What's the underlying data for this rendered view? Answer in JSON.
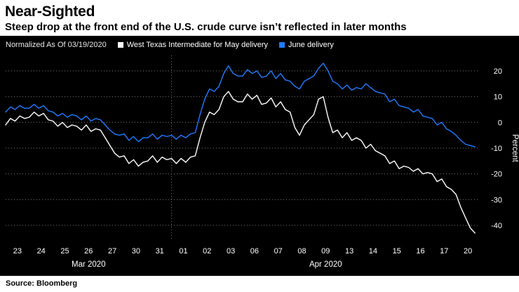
{
  "header": {
    "title": "Near-Sighted",
    "subtitle": "Steep drop at the front end of the U.S. crude curve isn’t reflected in later months"
  },
  "legend": {
    "note": "Normalized As Of 03/19/2020",
    "series": [
      {
        "label": "West Texas Intermediate for May delivery",
        "color": "#ffffff"
      },
      {
        "label": "June delivery",
        "color": "#1f7bff"
      }
    ]
  },
  "footer": {
    "source": "Source: Bloomberg"
  },
  "colors": {
    "background": "#000000",
    "grid": "#7a7a7a",
    "axis_text": "#ffffff",
    "may_series": "#ffffff",
    "june_series": "#1f7bff"
  },
  "chart_data": {
    "type": "line",
    "title": "Near-Sighted",
    "ylabel": "Percent",
    "ylim": [
      -46,
      26
    ],
    "yticks": [
      20,
      10,
      0,
      -10,
      -20,
      -30,
      -40
    ],
    "grid": true,
    "legend_position": "top",
    "x_domain": [
      0,
      20
    ],
    "x_tick_labels": [
      "23",
      "24",
      "25",
      "26",
      "27",
      "30",
      "31",
      "01",
      "02",
      "03",
      "06",
      "07",
      "08",
      "09",
      "13",
      "14",
      "15",
      "16",
      "17",
      "20"
    ],
    "month_labels": [
      {
        "label": "Mar 2020",
        "start_day": 0,
        "end_day": 7
      },
      {
        "label": "Apr 2020",
        "start_day": 7,
        "end_day": 20
      }
    ],
    "month_separator_day": 7,
    "series": [
      {
        "name": "West Texas Intermediate for May delivery",
        "color": "#ffffff",
        "points": [
          [
            0.0,
            -1
          ],
          [
            0.2,
            1.5
          ],
          [
            0.4,
            0.5
          ],
          [
            0.6,
            2.5
          ],
          [
            0.8,
            1.5
          ],
          [
            1.0,
            2
          ],
          [
            1.2,
            4
          ],
          [
            1.4,
            2.5
          ],
          [
            1.6,
            3.5
          ],
          [
            1.8,
            1
          ],
          [
            2.0,
            0.5
          ],
          [
            2.2,
            -1.5
          ],
          [
            2.4,
            0
          ],
          [
            2.6,
            -2
          ],
          [
            2.8,
            -1
          ],
          [
            3.0,
            -1.5
          ],
          [
            3.2,
            -3
          ],
          [
            3.4,
            -1
          ],
          [
            3.6,
            -3.5
          ],
          [
            3.8,
            -2.5
          ],
          [
            4.0,
            -3
          ],
          [
            4.2,
            -6
          ],
          [
            4.4,
            -9
          ],
          [
            4.6,
            -12
          ],
          [
            4.8,
            -13.5
          ],
          [
            5.0,
            -13
          ],
          [
            5.2,
            -16
          ],
          [
            5.4,
            -14.5
          ],
          [
            5.6,
            -17
          ],
          [
            5.8,
            -15.5
          ],
          [
            6.0,
            -15
          ],
          [
            6.2,
            -13
          ],
          [
            6.4,
            -15.5
          ],
          [
            6.6,
            -13.5
          ],
          [
            6.8,
            -14.5
          ],
          [
            7.0,
            -14
          ],
          [
            7.2,
            -16
          ],
          [
            7.4,
            -14
          ],
          [
            7.6,
            -15.5
          ],
          [
            7.8,
            -13.5
          ],
          [
            8.0,
            -13
          ],
          [
            8.2,
            -6
          ],
          [
            8.4,
            0
          ],
          [
            8.6,
            4
          ],
          [
            8.8,
            3
          ],
          [
            9.0,
            5
          ],
          [
            9.2,
            10
          ],
          [
            9.4,
            12
          ],
          [
            9.6,
            9
          ],
          [
            9.8,
            8
          ],
          [
            10.0,
            8
          ],
          [
            10.2,
            11
          ],
          [
            10.4,
            9
          ],
          [
            10.6,
            10.5
          ],
          [
            10.8,
            7
          ],
          [
            11.0,
            7.5
          ],
          [
            11.2,
            9.5
          ],
          [
            11.4,
            6
          ],
          [
            11.6,
            8
          ],
          [
            11.8,
            5
          ],
          [
            12.0,
            4
          ],
          [
            12.2,
            -2
          ],
          [
            12.4,
            -5
          ],
          [
            12.6,
            -1
          ],
          [
            12.8,
            1
          ],
          [
            13.0,
            3
          ],
          [
            13.2,
            9
          ],
          [
            13.4,
            10
          ],
          [
            13.6,
            2
          ],
          [
            13.8,
            -4
          ],
          [
            14.0,
            -3
          ],
          [
            14.2,
            -6
          ],
          [
            14.4,
            -4
          ],
          [
            14.6,
            -7
          ],
          [
            14.8,
            -6
          ],
          [
            15.0,
            -7
          ],
          [
            15.2,
            -10
          ],
          [
            15.4,
            -8.5
          ],
          [
            15.6,
            -11
          ],
          [
            15.8,
            -12
          ],
          [
            16.0,
            -13
          ],
          [
            16.2,
            -16
          ],
          [
            16.4,
            -15
          ],
          [
            16.6,
            -18
          ],
          [
            16.8,
            -17
          ],
          [
            17.0,
            -17.5
          ],
          [
            17.2,
            -19
          ],
          [
            17.4,
            -18
          ],
          [
            17.6,
            -20
          ],
          [
            17.8,
            -19.5
          ],
          [
            18.0,
            -20
          ],
          [
            18.2,
            -23
          ],
          [
            18.4,
            -22
          ],
          [
            18.6,
            -25
          ],
          [
            18.8,
            -26
          ],
          [
            19.0,
            -28
          ],
          [
            19.2,
            -33
          ],
          [
            19.4,
            -37
          ],
          [
            19.6,
            -41
          ],
          [
            19.8,
            -43
          ]
        ]
      },
      {
        "name": "June delivery",
        "color": "#1f7bff",
        "points": [
          [
            0.0,
            4
          ],
          [
            0.2,
            6
          ],
          [
            0.4,
            5
          ],
          [
            0.6,
            6.5
          ],
          [
            0.8,
            5.5
          ],
          [
            1.0,
            5.5
          ],
          [
            1.2,
            7
          ],
          [
            1.4,
            5.5
          ],
          [
            1.6,
            6.5
          ],
          [
            1.8,
            4.5
          ],
          [
            2.0,
            4
          ],
          [
            2.2,
            2.5
          ],
          [
            2.4,
            3.5
          ],
          [
            2.6,
            2
          ],
          [
            2.8,
            3
          ],
          [
            3.0,
            2.5
          ],
          [
            3.2,
            1
          ],
          [
            3.4,
            2.5
          ],
          [
            3.6,
            0.5
          ],
          [
            3.8,
            1.5
          ],
          [
            4.0,
            1
          ],
          [
            4.2,
            -1
          ],
          [
            4.4,
            -3
          ],
          [
            4.6,
            -4.5
          ],
          [
            4.8,
            -5
          ],
          [
            5.0,
            -4.5
          ],
          [
            5.2,
            -7
          ],
          [
            5.4,
            -5.5
          ],
          [
            5.6,
            -7.5
          ],
          [
            5.8,
            -6
          ],
          [
            6.0,
            -6
          ],
          [
            6.2,
            -4.5
          ],
          [
            6.4,
            -6.5
          ],
          [
            6.6,
            -5
          ],
          [
            6.8,
            -5.5
          ],
          [
            7.0,
            -5
          ],
          [
            7.2,
            -6.5
          ],
          [
            7.4,
            -5
          ],
          [
            7.6,
            -6
          ],
          [
            7.8,
            -4.5
          ],
          [
            8.0,
            -4
          ],
          [
            8.2,
            3
          ],
          [
            8.4,
            9
          ],
          [
            8.6,
            13
          ],
          [
            8.8,
            12
          ],
          [
            9.0,
            14
          ],
          [
            9.2,
            19
          ],
          [
            9.4,
            22
          ],
          [
            9.6,
            19
          ],
          [
            9.8,
            18
          ],
          [
            10.0,
            18
          ],
          [
            10.2,
            20.5
          ],
          [
            10.4,
            19
          ],
          [
            10.6,
            20
          ],
          [
            10.8,
            17.5
          ],
          [
            11.0,
            18
          ],
          [
            11.2,
            20
          ],
          [
            11.4,
            17
          ],
          [
            11.6,
            19
          ],
          [
            11.8,
            16.5
          ],
          [
            12.0,
            16
          ],
          [
            12.2,
            14
          ],
          [
            12.4,
            13
          ],
          [
            12.6,
            16
          ],
          [
            12.8,
            17
          ],
          [
            13.0,
            18
          ],
          [
            13.2,
            21
          ],
          [
            13.4,
            23
          ],
          [
            13.6,
            20
          ],
          [
            13.8,
            16
          ],
          [
            14.0,
            15
          ],
          [
            14.2,
            13
          ],
          [
            14.4,
            14.5
          ],
          [
            14.6,
            12.5
          ],
          [
            14.8,
            13.5
          ],
          [
            15.0,
            13
          ],
          [
            15.2,
            15
          ],
          [
            15.4,
            13.5
          ],
          [
            15.6,
            12
          ],
          [
            15.8,
            11.5
          ],
          [
            16.0,
            11
          ],
          [
            16.2,
            8
          ],
          [
            16.4,
            9
          ],
          [
            16.6,
            6.5
          ],
          [
            16.8,
            6
          ],
          [
            17.0,
            5.5
          ],
          [
            17.2,
            4
          ],
          [
            17.4,
            5
          ],
          [
            17.6,
            2.5
          ],
          [
            17.8,
            2
          ],
          [
            18.0,
            1.5
          ],
          [
            18.2,
            -1
          ],
          [
            18.4,
            0
          ],
          [
            18.6,
            -2.5
          ],
          [
            18.8,
            -3.5
          ],
          [
            19.0,
            -5
          ],
          [
            19.2,
            -7
          ],
          [
            19.4,
            -8.5
          ],
          [
            19.6,
            -9
          ],
          [
            19.8,
            -9.5
          ]
        ]
      }
    ]
  }
}
